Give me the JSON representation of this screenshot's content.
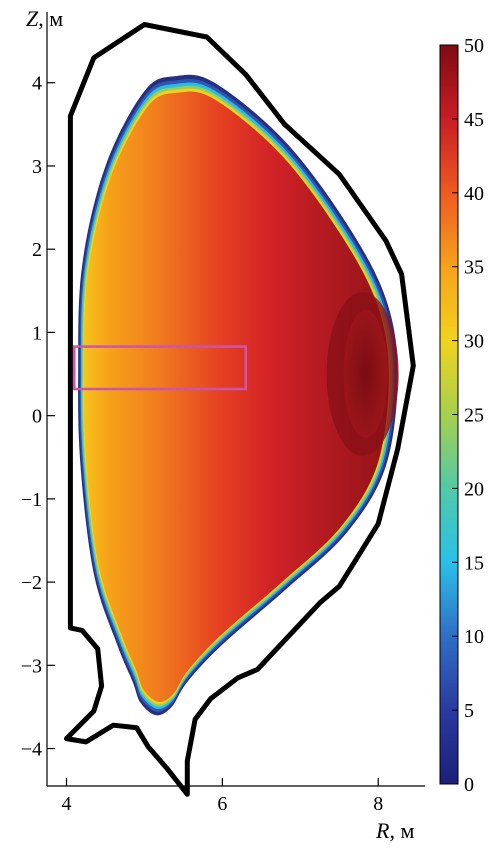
{
  "axes": {
    "ylabel_var": "Z",
    "ylabel_unit": ", м",
    "xlabel_var": "R",
    "xlabel_unit": ", м"
  },
  "chart_data": {
    "type": "heatmap",
    "title": "",
    "xlabel": "R, м",
    "ylabel": "Z, м",
    "xlim": [
      3.75,
      8.6
    ],
    "ylim": [
      -4.45,
      4.85
    ],
    "x_ticks": [
      4,
      6,
      8
    ],
    "y_ticks": [
      -4,
      -3,
      -2,
      -1,
      0,
      1,
      2,
      3,
      4
    ],
    "x_tick_labels": [
      "4",
      "6",
      "8"
    ],
    "y_tick_labels": [
      "−4",
      "−3",
      "−2",
      "−1",
      "0",
      "1",
      "2",
      "3",
      "4"
    ],
    "colorbar": {
      "min": 0,
      "max": 50,
      "ticks": [
        0,
        5,
        10,
        15,
        20,
        25,
        30,
        35,
        40,
        45,
        50
      ],
      "tick_labels": [
        "0",
        "5",
        "10",
        "15",
        "20",
        "25",
        "30",
        "35",
        "40",
        "45",
        "50"
      ],
      "colormap": "jet"
    },
    "plasma_boundary": [
      [
        4.15,
        0.55
      ],
      [
        4.2,
        1.8
      ],
      [
        4.5,
        3.0
      ],
      [
        5.0,
        3.9
      ],
      [
        5.4,
        4.08
      ],
      [
        5.9,
        4.0
      ],
      [
        6.8,
        3.3
      ],
      [
        7.6,
        2.3
      ],
      [
        8.1,
        1.4
      ],
      [
        8.25,
        0.5
      ],
      [
        8.1,
        -0.6
      ],
      [
        7.6,
        -1.4
      ],
      [
        6.8,
        -2.1
      ],
      [
        6.0,
        -2.75
      ],
      [
        5.55,
        -3.2
      ],
      [
        5.35,
        -3.5
      ],
      [
        5.15,
        -3.6
      ],
      [
        4.95,
        -3.45
      ],
      [
        4.85,
        -3.2
      ],
      [
        4.65,
        -2.75
      ],
      [
        4.35,
        -1.9
      ],
      [
        4.18,
        -0.6
      ]
    ],
    "field_maximum": {
      "R": 7.8,
      "Z": 0.5,
      "value": 50
    },
    "wall_contour": [
      [
        4.05,
        3.6
      ],
      [
        4.05,
        -2.55
      ],
      [
        4.2,
        -2.58
      ],
      [
        4.4,
        -2.8
      ],
      [
        4.45,
        -3.25
      ],
      [
        4.35,
        -3.55
      ],
      [
        4.0,
        -3.88
      ],
      [
        4.25,
        -3.92
      ],
      [
        4.6,
        -3.72
      ],
      [
        4.9,
        -3.75
      ],
      [
        5.05,
        -3.98
      ],
      [
        5.3,
        -4.25
      ],
      [
        5.55,
        -4.55
      ],
      [
        5.55,
        -4.15
      ],
      [
        5.65,
        -3.65
      ],
      [
        5.85,
        -3.4
      ],
      [
        6.2,
        -3.15
      ],
      [
        6.45,
        -3.05
      ],
      [
        6.9,
        -2.6
      ],
      [
        7.25,
        -2.25
      ],
      [
        7.5,
        -2.05
      ],
      [
        7.7,
        -1.75
      ],
      [
        8.0,
        -1.3
      ],
      [
        8.25,
        -0.4
      ],
      [
        8.45,
        0.6
      ],
      [
        8.3,
        1.7
      ],
      [
        8.1,
        2.1
      ],
      [
        7.5,
        2.9
      ],
      [
        6.8,
        3.5
      ],
      [
        6.3,
        4.1
      ],
      [
        5.8,
        4.55
      ],
      [
        5.0,
        4.7
      ],
      [
        4.35,
        4.3
      ]
    ],
    "rectangle": {
      "R_min": 4.1,
      "R_max": 6.3,
      "Z_min": 0.32,
      "Z_max": 0.83,
      "color": "#cc55aa"
    }
  }
}
